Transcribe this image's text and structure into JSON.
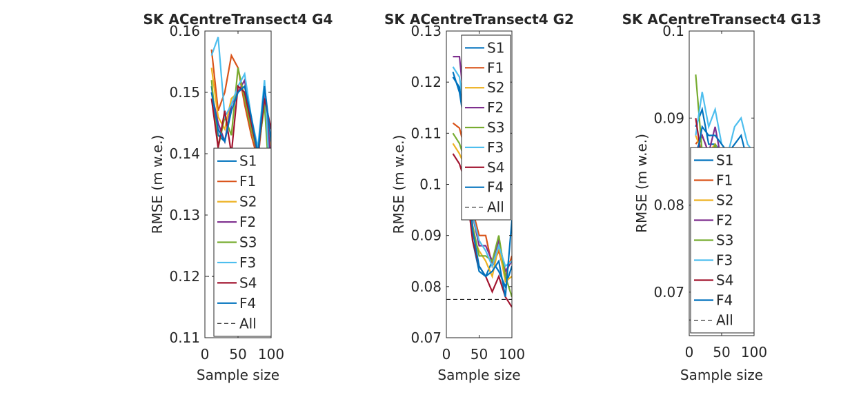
{
  "colors": {
    "S1": "#0072BD",
    "F1": "#D95319",
    "S2": "#EDB120",
    "F2": "#7E2F8E",
    "S3": "#77AC30",
    "F3": "#4DBEEE",
    "S4": "#A2142F",
    "F4": "#0072BD",
    "All": "#000000"
  },
  "chart_data": [
    {
      "type": "line",
      "title": "SK ACentreTransect4 G4",
      "xlabel": "Sample size",
      "ylabel": "RMSE (m w.e.)",
      "xlim": [
        0,
        100
      ],
      "ylim": [
        0.11,
        0.16
      ],
      "xticks": [
        0,
        50,
        100
      ],
      "yticks": [
        0.11,
        0.12,
        0.13,
        0.14,
        0.15,
        0.16
      ],
      "ytick_labels": [
        "0.11",
        "0.12",
        "0.13",
        "0.14",
        "0.15",
        "0.16"
      ],
      "legend_position": "lower-right",
      "x": [
        10,
        20,
        30,
        40,
        50,
        60,
        70,
        80,
        90,
        100
      ],
      "series": [
        {
          "name": "S1",
          "values": [
            0.151,
            0.143,
            0.142,
            0.148,
            0.151,
            0.15,
            0.146,
            0.14,
            0.151,
            0.141
          ]
        },
        {
          "name": "F1",
          "values": [
            0.157,
            0.147,
            0.15,
            0.156,
            0.154,
            0.148,
            0.143,
            0.139,
            0.149,
            0.138
          ]
        },
        {
          "name": "S2",
          "values": [
            0.154,
            0.146,
            0.144,
            0.149,
            0.15,
            0.151,
            0.145,
            0.14,
            0.15,
            0.14
          ]
        },
        {
          "name": "F2",
          "values": [
            0.15,
            0.145,
            0.142,
            0.148,
            0.15,
            0.152,
            0.145,
            0.139,
            0.15,
            0.139
          ]
        },
        {
          "name": "S3",
          "values": [
            0.152,
            0.141,
            0.146,
            0.143,
            0.154,
            0.149,
            0.144,
            0.14,
            0.148,
            0.131
          ]
        },
        {
          "name": "F3",
          "values": [
            0.156,
            0.159,
            0.146,
            0.148,
            0.151,
            0.153,
            0.146,
            0.141,
            0.152,
            0.132
          ]
        },
        {
          "name": "S4",
          "values": [
            0.149,
            0.141,
            0.147,
            0.14,
            0.151,
            0.15,
            0.145,
            0.14,
            0.149,
            0.144
          ]
        },
        {
          "name": "F4",
          "values": [
            0.15,
            0.144,
            0.142,
            0.147,
            0.15,
            0.151,
            0.146,
            0.14,
            0.151,
            0.142
          ]
        },
        {
          "name": "All",
          "values": [
            0.12,
            0.12,
            0.12,
            0.12,
            0.12,
            0.12,
            0.12,
            0.12,
            0.12,
            0.12
          ]
        }
      ]
    },
    {
      "type": "line",
      "title": "SK ACentreTransect4 G2",
      "xlabel": "Sample size",
      "ylabel": "RMSE (m w.e.)",
      "xlim": [
        0,
        100
      ],
      "ylim": [
        0.07,
        0.13
      ],
      "xticks": [
        0,
        50,
        100
      ],
      "yticks": [
        0.07,
        0.08,
        0.09,
        0.1,
        0.11,
        0.12,
        0.13
      ],
      "ytick_labels": [
        "0.07",
        "0.08",
        "0.09",
        "0.1",
        "0.11",
        "0.12",
        "0.13"
      ],
      "legend_position": "top-right",
      "x": [
        10,
        20,
        30,
        40,
        50,
        60,
        70,
        80,
        90,
        100
      ],
      "series": [
        {
          "name": "S1",
          "values": [
            0.122,
            0.118,
            0.11,
            0.089,
            0.083,
            0.082,
            0.085,
            0.083,
            0.08,
            0.084
          ]
        },
        {
          "name": "F1",
          "values": [
            0.112,
            0.111,
            0.106,
            0.095,
            0.09,
            0.09,
            0.084,
            0.087,
            0.082,
            0.086
          ]
        },
        {
          "name": "S2",
          "values": [
            0.108,
            0.106,
            0.103,
            0.09,
            0.087,
            0.085,
            0.082,
            0.088,
            0.081,
            0.082
          ]
        },
        {
          "name": "F2",
          "values": [
            0.125,
            0.125,
            0.112,
            0.094,
            0.088,
            0.088,
            0.085,
            0.089,
            0.083,
            0.085
          ]
        },
        {
          "name": "S3",
          "values": [
            0.11,
            0.108,
            0.104,
            0.092,
            0.086,
            0.086,
            0.085,
            0.09,
            0.082,
            0.078
          ]
        },
        {
          "name": "F3",
          "values": [
            0.123,
            0.121,
            0.112,
            0.094,
            0.089,
            0.087,
            0.084,
            0.088,
            0.084,
            0.085
          ]
        },
        {
          "name": "S4",
          "values": [
            0.106,
            0.104,
            0.1,
            0.089,
            0.084,
            0.082,
            0.079,
            0.082,
            0.078,
            0.076
          ]
        },
        {
          "name": "F4",
          "values": [
            0.121,
            0.119,
            0.11,
            0.091,
            0.084,
            0.082,
            0.083,
            0.085,
            0.078,
            0.093
          ]
        },
        {
          "name": "All",
          "values": [
            0.0775,
            0.0775,
            0.0775,
            0.0775,
            0.0775,
            0.0775,
            0.0775,
            0.0775,
            0.0775,
            0.0775
          ]
        }
      ]
    },
    {
      "type": "line",
      "title": "SK ACentreTransect4 G13",
      "xlabel": "Sample size",
      "ylabel": "RMSE (m w.e.)",
      "xlim": [
        0,
        100
      ],
      "ylim": [
        0.065,
        0.1
      ],
      "xticks": [
        0,
        50,
        100
      ],
      "yticks": [
        0.07,
        0.08,
        0.09,
        0.1
      ],
      "ytick_labels": [
        "0.07",
        "0.08",
        "0.09",
        "0.1"
      ],
      "legend_position": "lower-left",
      "x": [
        10,
        20,
        30,
        40,
        50,
        60,
        70,
        80,
        90,
        100
      ],
      "series": [
        {
          "name": "S1",
          "values": [
            0.089,
            0.091,
            0.087,
            0.087,
            0.086,
            0.084,
            0.083,
            0.081,
            0.078,
            0.081
          ]
        },
        {
          "name": "F1",
          "values": [
            0.087,
            0.088,
            0.086,
            0.087,
            0.085,
            0.083,
            0.083,
            0.081,
            0.079,
            0.081
          ]
        },
        {
          "name": "S2",
          "values": [
            0.088,
            0.086,
            0.086,
            0.087,
            0.085,
            0.084,
            0.082,
            0.08,
            0.076,
            0.079
          ]
        },
        {
          "name": "F2",
          "values": [
            0.086,
            0.088,
            0.086,
            0.089,
            0.085,
            0.085,
            0.084,
            0.085,
            0.08,
            0.082
          ]
        },
        {
          "name": "S3",
          "values": [
            0.095,
            0.086,
            0.084,
            0.087,
            0.084,
            0.083,
            0.083,
            0.082,
            0.078,
            0.082
          ]
        },
        {
          "name": "F3",
          "values": [
            0.088,
            0.093,
            0.089,
            0.091,
            0.087,
            0.086,
            0.089,
            0.09,
            0.087,
            0.086
          ]
        },
        {
          "name": "S4",
          "values": [
            0.09,
            0.085,
            0.085,
            0.086,
            0.084,
            0.083,
            0.082,
            0.081,
            0.075,
            0.08
          ]
        },
        {
          "name": "F4",
          "values": [
            0.085,
            0.089,
            0.088,
            0.088,
            0.087,
            0.086,
            0.087,
            0.088,
            0.085,
            0.084
          ]
        },
        {
          "name": "All",
          "values": [
            0.0668,
            0.0668,
            0.0668,
            0.0668,
            0.0668,
            0.0668,
            0.0668,
            0.0668,
            0.0668,
            0.0668
          ]
        }
      ]
    }
  ]
}
